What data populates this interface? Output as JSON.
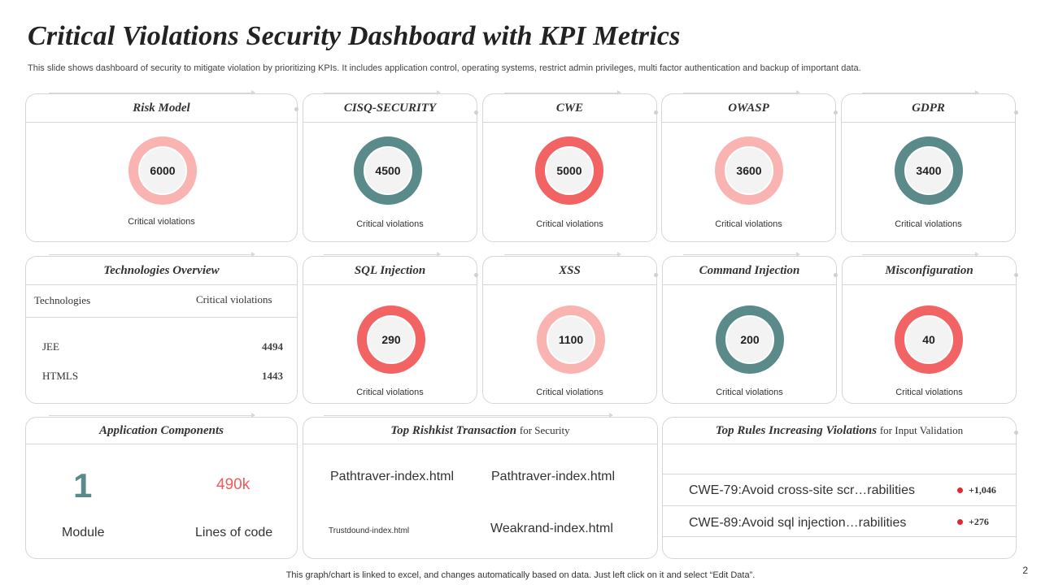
{
  "header": {
    "title": "Critical Violations Security Dashboard with KPI Metrics",
    "subtitle": "This slide shows dashboard of security to  mitigate violation by prioritizing KPIs. It includes application control, operating systems, restrict admin privileges, multi factor authentication and backup of important data."
  },
  "colors": {
    "light_pink": "#f9b3b1",
    "teal": "#5b8a8a",
    "coral": "#f26464"
  },
  "kpis": [
    {
      "title": "Risk Model",
      "value": "6000",
      "caption": "Critical  violations",
      "color": "#f9b3b1"
    },
    {
      "title": "CISQ-SECURITY",
      "value": "4500",
      "caption": "Critical  violations",
      "color": "#5b8a8a"
    },
    {
      "title": "CWE",
      "value": "5000",
      "caption": "Critical  violations",
      "color": "#f26464"
    },
    {
      "title": "OWASP",
      "value": "3600",
      "caption": "Critical  violations",
      "color": "#f9b3b1"
    },
    {
      "title": "GDPR",
      "value": "3400",
      "caption": "Critical  violations",
      "color": "#5b8a8a"
    },
    {
      "title": "SQL Injection",
      "value": "290",
      "caption": "Critical  violations",
      "color": "#f26464"
    },
    {
      "title": "XSS",
      "value": "1100",
      "caption": "Critical  violations",
      "color": "#f9b3b1"
    },
    {
      "title": "Command Injection",
      "value": "200",
      "caption": "Critical  violations",
      "color": "#5b8a8a"
    },
    {
      "title": "Misconfiguration",
      "value": "40",
      "caption": "Critical  violations",
      "color": "#f26464"
    }
  ],
  "technologies": {
    "title": "Technologies Overview",
    "col1": "Technologies",
    "col2": "Critical  violations",
    "rows": [
      {
        "name": "JEE",
        "value": "4494"
      },
      {
        "name": "HTMLS",
        "value": "1443"
      }
    ]
  },
  "app_components": {
    "title": "Application Components",
    "modules_value": "1",
    "modules_label": "Module",
    "loc_value": "490k",
    "loc_label": "Lines of code"
  },
  "risk_transactions": {
    "title": "Top Rishkist Transaction",
    "title_suffix": "for Security",
    "items": [
      "Pathtraver-index.html",
      "Pathtraver-index.html",
      "Trustdound-index.html",
      "Weakrand-index.html"
    ]
  },
  "top_rules": {
    "title": "Top Rules Increasing Violations",
    "title_suffix": "for Input Validation",
    "rows": [
      {
        "text": "CWE-79:Avoid cross-site scr…rabilities",
        "delta": "+1,046"
      },
      {
        "text": "CWE-89:Avoid sql injection…rabilities",
        "delta": "+276"
      }
    ]
  },
  "footer": {
    "note": "This graph/chart is linked to excel,  and changes automatically based on data. Just left click on it and select “Edit Data”.",
    "page": "2"
  }
}
